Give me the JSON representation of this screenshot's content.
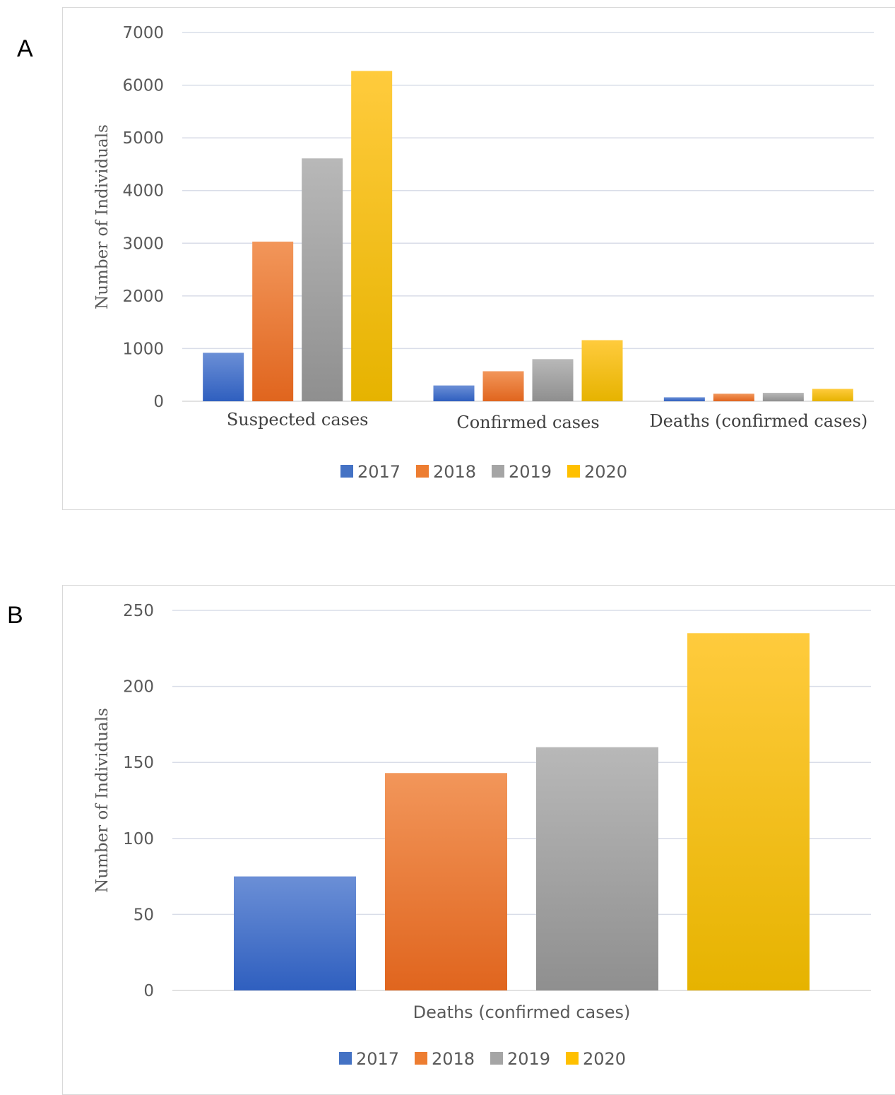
{
  "panels": {
    "a_label": "A",
    "b_label": "B"
  },
  "colors": {
    "2017": "#4472c4",
    "2018": "#ed7d31",
    "2019": "#a5a5a5",
    "2020": "#ffc000",
    "grid": "#d9dde8",
    "axis": "#d9d9d9"
  },
  "chart_data": [
    {
      "type": "bar",
      "panel": "A",
      "categories": [
        "Suspected cases",
        "Confirmed cases",
        "Deaths (confirmed cases)"
      ],
      "series": [
        {
          "name": "2017",
          "values": [
            920,
            300,
            75
          ]
        },
        {
          "name": "2018",
          "values": [
            3030,
            570,
            143
          ]
        },
        {
          "name": "2019",
          "values": [
            4610,
            800,
            160
          ]
        },
        {
          "name": "2020",
          "values": [
            6270,
            1160,
            235
          ]
        }
      ],
      "ylabel": "Number of Individuals",
      "xlabel": "",
      "ylim": [
        0,
        7000
      ],
      "yticks": [
        "0",
        "1000",
        "2000",
        "3000",
        "4000",
        "5000",
        "6000",
        "7000"
      ],
      "grid": true,
      "legend": "bottom"
    },
    {
      "type": "bar",
      "panel": "B",
      "categories": [
        "Deaths (confirmed cases)"
      ],
      "series": [
        {
          "name": "2017",
          "values": [
            75
          ]
        },
        {
          "name": "2018",
          "values": [
            143
          ]
        },
        {
          "name": "2019",
          "values": [
            160
          ]
        },
        {
          "name": "2020",
          "values": [
            235
          ]
        }
      ],
      "ylabel": "Number of Individuals",
      "xlabel": "",
      "ylim": [
        0,
        250
      ],
      "yticks": [
        "0",
        "50",
        "100",
        "150",
        "200",
        "250"
      ],
      "grid": true,
      "legend": "bottom"
    }
  ]
}
